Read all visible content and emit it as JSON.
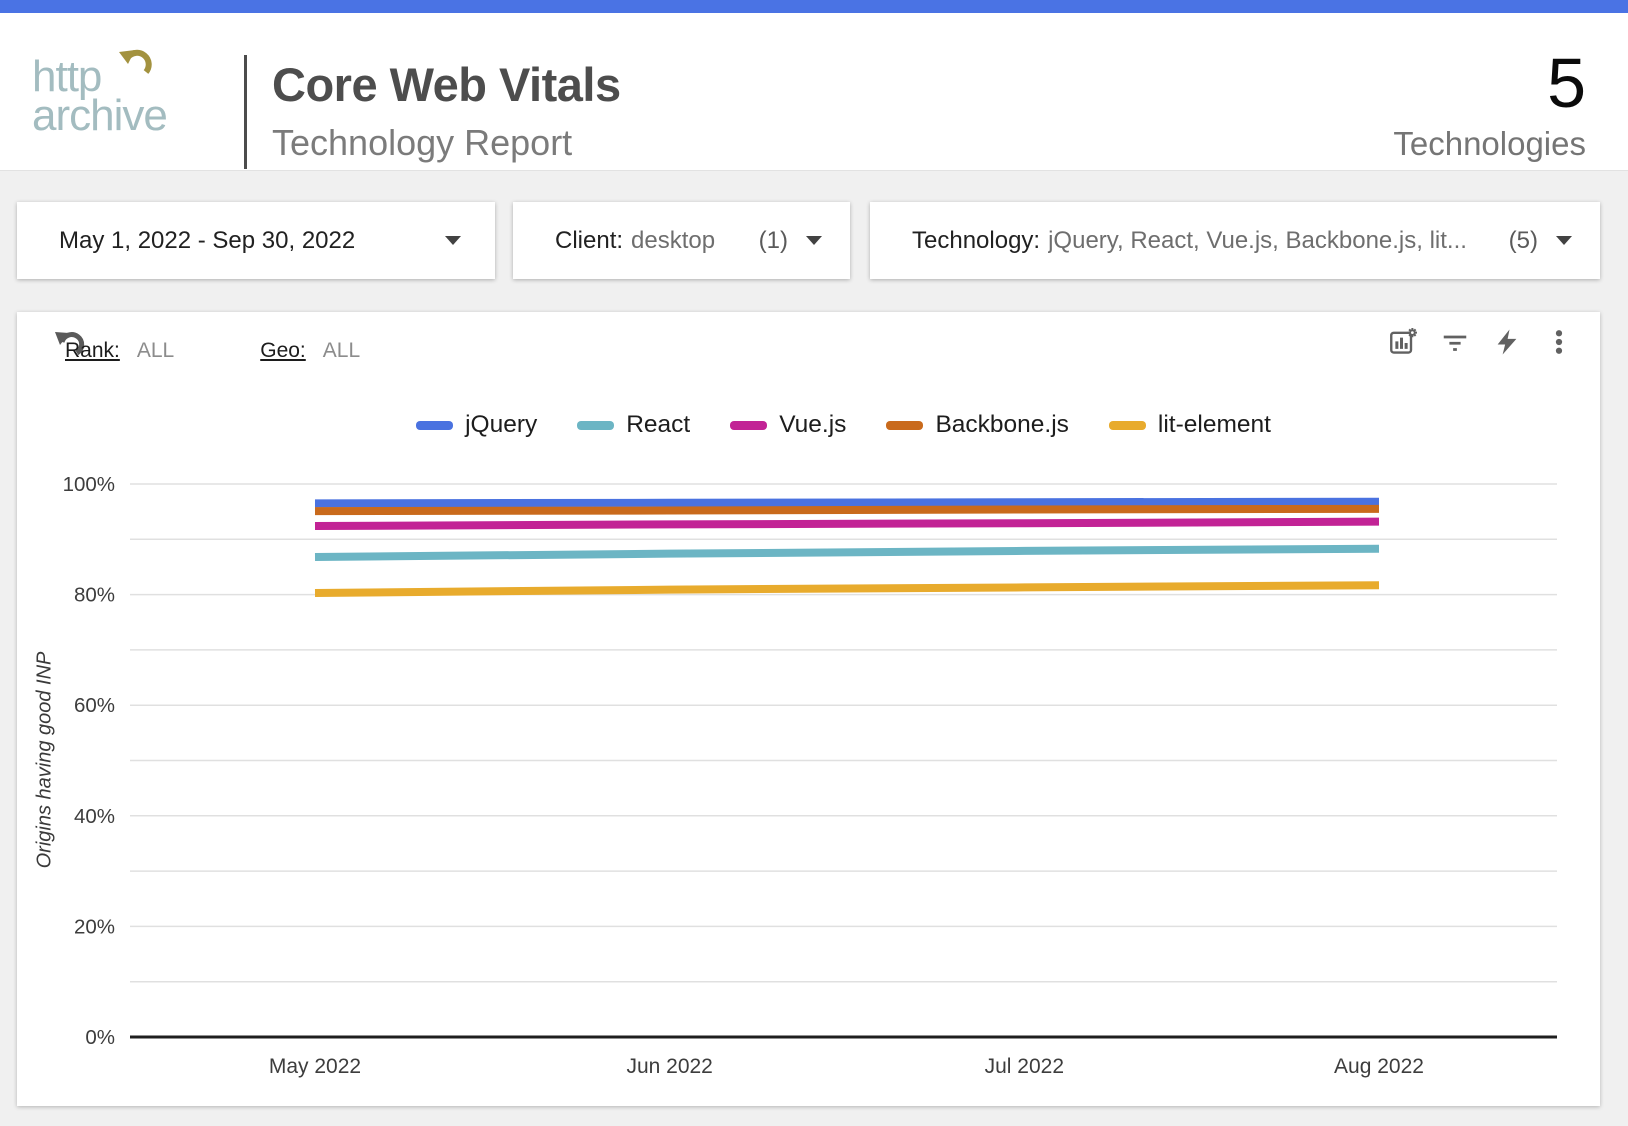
{
  "page": {
    "topbar_color": "#4a73e4",
    "background": "#f0f0f0"
  },
  "header": {
    "logo_line1": "http",
    "logo_line2": "archive",
    "logo_color": "#a3bcc0",
    "logo_arrow_color": "#a3923f",
    "title": "Core Web Vitals",
    "subtitle": "Technology Report",
    "stat_value": "5",
    "stat_label": "Technologies"
  },
  "filters": {
    "date_range": "May 1, 2022 - Sep 30, 2022",
    "client_label": "Client:",
    "client_value": "desktop",
    "client_count": "(1)",
    "technology_label": "Technology:",
    "technology_value": "jQuery, React, Vue.js, Backbone.js, lit...",
    "technology_count": "(5)"
  },
  "chart_header": {
    "rank_label": "Rank:",
    "rank_value": "ALL",
    "geo_label": "Geo:",
    "geo_value": "ALL",
    "toolbar_icons": [
      "chart-settings-icon",
      "filter-icon",
      "lightning-icon",
      "kebab-menu-icon"
    ]
  },
  "chart_data": {
    "type": "line",
    "title": "",
    "xlabel": "",
    "ylabel": "Origins having good INP",
    "x": [
      "May 2022",
      "Jun 2022",
      "Jul 2022",
      "Aug 2022"
    ],
    "ylim": [
      0,
      100
    ],
    "ytick_interval": 10,
    "ytick_label_interval": 20,
    "ytick_suffix": "%",
    "grid": true,
    "legend_position": "top",
    "series": [
      {
        "name": "jQuery",
        "color": "#4a72e0",
        "values": [
          96.5,
          96.6,
          96.7,
          96.8
        ]
      },
      {
        "name": "React",
        "color": "#6cb5c4",
        "values": [
          86.8,
          87.4,
          87.9,
          88.3
        ]
      },
      {
        "name": "Vue.js",
        "color": "#c22395",
        "values": [
          92.4,
          92.7,
          92.9,
          93.2
        ]
      },
      {
        "name": "Backbone.js",
        "color": "#c96a1c",
        "values": [
          95.1,
          95.2,
          95.4,
          95.5
        ]
      },
      {
        "name": "lit-element",
        "color": "#e8ab2d",
        "values": [
          80.3,
          80.9,
          81.3,
          81.7
        ]
      }
    ]
  }
}
